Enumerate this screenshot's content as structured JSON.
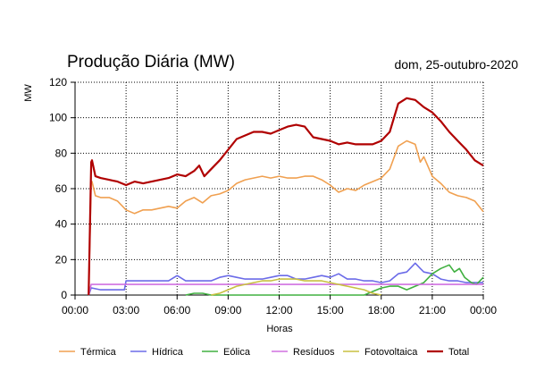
{
  "chart_data": {
    "type": "line",
    "title": "Produção Diária (MW)",
    "date": "dom, 25-outubro-2020",
    "xlabel": "Horas",
    "ylabel": "MW",
    "ylim": [
      0,
      120
    ],
    "xlim": [
      0,
      24
    ],
    "x_ticks": [
      "00:00",
      "03:00",
      "06:00",
      "09:00",
      "12:00",
      "15:00",
      "18:00",
      "21:00",
      "00:00"
    ],
    "y_ticks": [
      "0",
      "20",
      "40",
      "60",
      "80",
      "100",
      "120"
    ],
    "grid": true,
    "legend_position": "bottom",
    "series": [
      {
        "name": "Térmica",
        "color": "#f0a050",
        "x": [
          0.8,
          0.95,
          1.0,
          1.2,
          1.5,
          2.0,
          2.5,
          3.0,
          3.5,
          4.0,
          4.5,
          5.0,
          5.5,
          6.0,
          6.5,
          7.0,
          7.5,
          8.0,
          8.5,
          9.0,
          9.5,
          10.0,
          10.5,
          11.0,
          11.5,
          12.0,
          12.5,
          13.0,
          13.5,
          14.0,
          14.5,
          15.0,
          15.5,
          16.0,
          16.5,
          17.0,
          17.5,
          18.0,
          18.5,
          19.0,
          19.5,
          20.0,
          20.3,
          20.5,
          21.0,
          21.5,
          22.0,
          22.5,
          23.0,
          23.5,
          24.0
        ],
        "values": [
          0,
          64,
          64,
          56,
          55,
          55,
          53,
          48,
          46,
          48,
          48,
          49,
          50,
          49,
          53,
          55,
          52,
          56,
          57,
          59,
          63,
          65,
          66,
          67,
          66,
          67,
          66,
          66,
          67,
          67,
          65,
          62,
          58,
          60,
          59,
          62,
          64,
          66,
          71,
          84,
          87,
          85,
          75,
          78,
          67,
          63,
          58,
          56,
          55,
          53,
          47
        ]
      },
      {
        "name": "Hídrica",
        "color": "#6b6be8",
        "x": [
          0.8,
          0.95,
          1.0,
          1.5,
          2.0,
          2.5,
          2.9,
          3.0,
          3.5,
          4.0,
          5.0,
          5.5,
          6.0,
          6.5,
          7.0,
          7.5,
          8.0,
          8.5,
          9.0,
          9.5,
          10.0,
          11.0,
          11.5,
          12.0,
          12.5,
          13.0,
          13.5,
          14.0,
          14.5,
          15.0,
          15.5,
          16.0,
          16.5,
          17.0,
          17.5,
          18.0,
          18.5,
          19.0,
          19.5,
          20.0,
          20.3,
          20.5,
          21.0,
          21.5,
          22.0,
          22.5,
          23.0,
          23.5,
          24.0
        ],
        "values": [
          0,
          4,
          4,
          3,
          3,
          3,
          3,
          8,
          8,
          8,
          8,
          8,
          11,
          8,
          8,
          8,
          8,
          10,
          11,
          10,
          9,
          9,
          10,
          11,
          11,
          9,
          9,
          10,
          11,
          10,
          12,
          9,
          9,
          8,
          8,
          7,
          8,
          12,
          13,
          18,
          15,
          13,
          12,
          9,
          8,
          8,
          7,
          7,
          7
        ]
      },
      {
        "name": "Eólica",
        "color": "#40b040",
        "x": [
          6.5,
          7.0,
          7.5,
          8.0,
          8.5,
          17.0,
          17.5,
          18.0,
          18.5,
          19.0,
          19.5,
          20.0,
          20.5,
          21.0,
          21.5,
          22.0,
          22.3,
          22.6,
          22.9,
          23.3,
          23.6,
          24.0
        ],
        "values": [
          0,
          1,
          1,
          0,
          0,
          0,
          2,
          4,
          5,
          5,
          3,
          5,
          7,
          12,
          15,
          17,
          13,
          15,
          10,
          7,
          6,
          10
        ]
      },
      {
        "name": "Resíduos",
        "color": "#d070e0",
        "x": [
          0.8,
          0.95,
          1.0,
          2.0,
          3.0,
          4.0,
          5.0,
          6.0,
          7.0,
          8.0,
          9.0,
          10.0,
          11.0,
          12.0,
          13.0,
          14.0,
          15.0,
          16.0,
          17.0,
          18.0,
          19.0,
          20.0,
          21.0,
          22.0,
          23.0,
          24.0
        ],
        "values": [
          0,
          6,
          6,
          6,
          6,
          6,
          6,
          6,
          6,
          6,
          6,
          6,
          6,
          6,
          6,
          6,
          6,
          6,
          6,
          6,
          6,
          6,
          6,
          6,
          6,
          6
        ]
      },
      {
        "name": "Fotovoltaica",
        "color": "#c8c040",
        "x": [
          8.0,
          8.5,
          9.0,
          9.5,
          10.0,
          10.5,
          11.0,
          11.5,
          12.0,
          12.5,
          13.0,
          13.5,
          14.0,
          14.5,
          15.0,
          15.5,
          16.0,
          16.5,
          17.0,
          17.5,
          18.0
        ],
        "values": [
          0,
          1,
          3,
          5,
          6,
          7,
          8,
          8,
          9,
          9,
          9,
          8,
          8,
          8,
          7,
          6,
          5,
          4,
          3,
          1,
          0
        ]
      },
      {
        "name": "Total",
        "color": "#b00000",
        "x": [
          0.8,
          0.95,
          1.0,
          1.2,
          1.5,
          2.0,
          2.5,
          3.0,
          3.5,
          4.0,
          4.5,
          5.0,
          5.5,
          6.0,
          6.5,
          7.0,
          7.3,
          7.6,
          8.0,
          8.5,
          9.0,
          9.5,
          10.0,
          10.5,
          11.0,
          11.5,
          12.0,
          12.5,
          13.0,
          13.5,
          14.0,
          14.5,
          15.0,
          15.5,
          16.0,
          16.5,
          17.0,
          17.5,
          18.0,
          18.5,
          19.0,
          19.5,
          20.0,
          20.5,
          21.0,
          21.5,
          22.0,
          22.5,
          23.0,
          23.5,
          24.0
        ],
        "values": [
          0,
          75,
          76,
          67,
          66,
          65,
          64,
          62,
          64,
          63,
          64,
          65,
          66,
          68,
          67,
          70,
          73,
          67,
          71,
          76,
          82,
          88,
          90,
          92,
          92,
          91,
          93,
          95,
          96,
          95,
          89,
          88,
          87,
          85,
          86,
          85,
          85,
          85,
          87,
          92,
          108,
          111,
          110,
          106,
          103,
          98,
          92,
          87,
          82,
          76,
          73
        ]
      }
    ]
  }
}
